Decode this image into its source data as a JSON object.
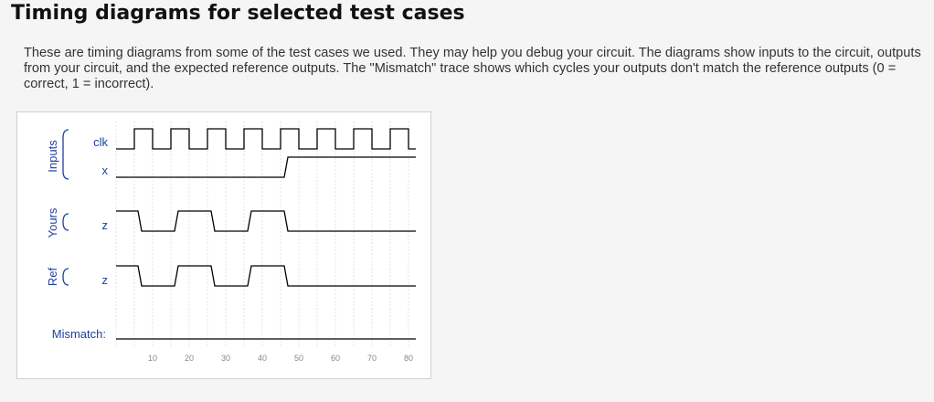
{
  "heading": "Timing diagrams for selected test cases",
  "description": "These are timing diagrams from some of the test cases we used. They may help you debug your circuit. The diagrams show inputs to the circuit, outputs from your circuit, and the expected reference outputs. The \"Mismatch\" trace shows which cycles your outputs don't match the reference outputs (0 = correct, 1 = incorrect).",
  "groups": {
    "inputs": "Inputs",
    "yours": "Yours",
    "ref": "Ref"
  },
  "signals": {
    "clk": "clk",
    "x": "x",
    "yours_z": "z",
    "ref_z": "z",
    "mismatch": "Mismatch:"
  },
  "chart_data": {
    "type": "timing",
    "time_range": [
      0,
      80
    ],
    "x_ticks": [
      10,
      20,
      30,
      40,
      50,
      60,
      70,
      80
    ],
    "clock_period": 10,
    "traces": [
      {
        "group": "Inputs",
        "name": "clk",
        "kind": "clock",
        "first_rise": 5
      },
      {
        "group": "Inputs",
        "name": "x",
        "kind": "bit",
        "transitions": [
          [
            0,
            0
          ],
          [
            46,
            1
          ]
        ]
      },
      {
        "group": "Yours",
        "name": "z",
        "kind": "bit",
        "transitions": [
          [
            0,
            1
          ],
          [
            6,
            0
          ],
          [
            16,
            1
          ],
          [
            26,
            0
          ],
          [
            36,
            1
          ],
          [
            46,
            0
          ]
        ]
      },
      {
        "group": "Ref",
        "name": "z",
        "kind": "bit",
        "transitions": [
          [
            0,
            1
          ],
          [
            6,
            0
          ],
          [
            16,
            1
          ],
          [
            26,
            0
          ],
          [
            36,
            1
          ],
          [
            46,
            0
          ]
        ]
      },
      {
        "group": "",
        "name": "Mismatch:",
        "kind": "bit",
        "transitions": [
          [
            0,
            0
          ]
        ]
      }
    ],
    "colors": {
      "trace": "#000000",
      "label": "#1f3f9f",
      "grid": "#d8d8d8",
      "tick": "#888888",
      "brace": "#1f3f9f"
    }
  }
}
